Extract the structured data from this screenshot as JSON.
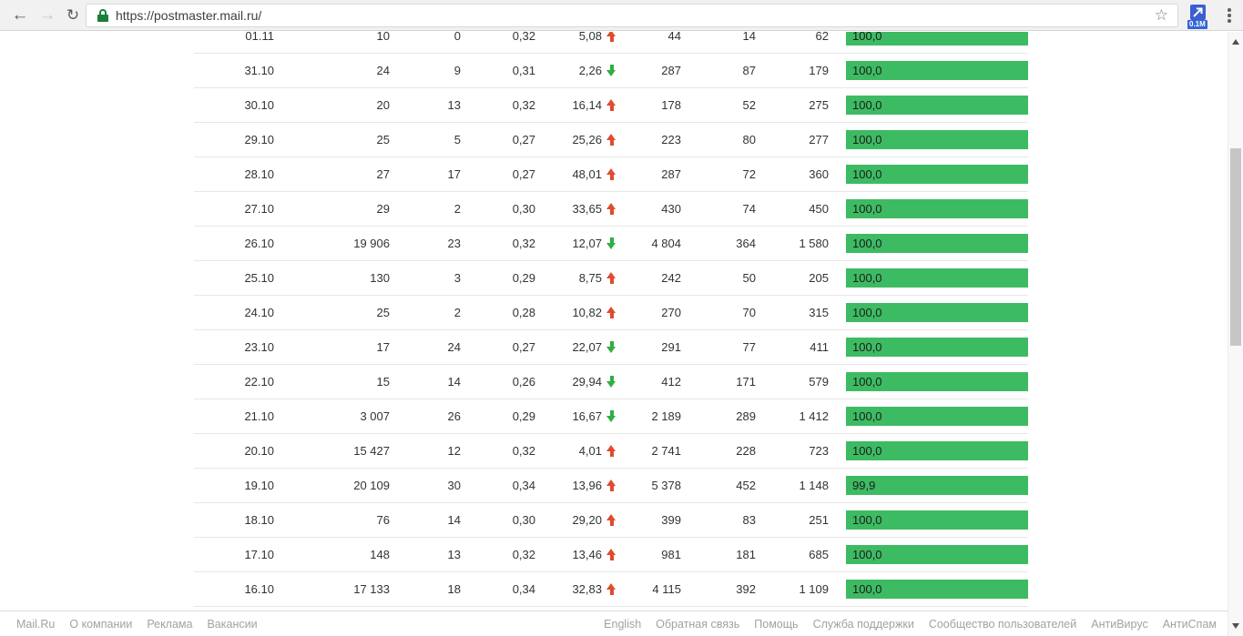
{
  "browser": {
    "url": "https://postmaster.mail.ru/",
    "extension_badge": "0.1M"
  },
  "table": {
    "rows": [
      {
        "date": "01.11",
        "v1": "10",
        "v2": "0",
        "v3": "0,32",
        "delta": "5,08",
        "delta_dir": "up",
        "v4": "44",
        "v5": "14",
        "v6": "62",
        "bar_label": "100,0",
        "bar_value": 100.0
      },
      {
        "date": "31.10",
        "v1": "24",
        "v2": "9",
        "v3": "0,31",
        "delta": "2,26",
        "delta_dir": "down",
        "v4": "287",
        "v5": "87",
        "v6": "179",
        "bar_label": "100,0",
        "bar_value": 100.0
      },
      {
        "date": "30.10",
        "v1": "20",
        "v2": "13",
        "v3": "0,32",
        "delta": "16,14",
        "delta_dir": "up",
        "v4": "178",
        "v5": "52",
        "v6": "275",
        "bar_label": "100,0",
        "bar_value": 100.0
      },
      {
        "date": "29.10",
        "v1": "25",
        "v2": "5",
        "v3": "0,27",
        "delta": "25,26",
        "delta_dir": "up",
        "v4": "223",
        "v5": "80",
        "v6": "277",
        "bar_label": "100,0",
        "bar_value": 100.0
      },
      {
        "date": "28.10",
        "v1": "27",
        "v2": "17",
        "v3": "0,27",
        "delta": "48,01",
        "delta_dir": "up",
        "v4": "287",
        "v5": "72",
        "v6": "360",
        "bar_label": "100,0",
        "bar_value": 100.0
      },
      {
        "date": "27.10",
        "v1": "29",
        "v2": "2",
        "v3": "0,30",
        "delta": "33,65",
        "delta_dir": "up",
        "v4": "430",
        "v5": "74",
        "v6": "450",
        "bar_label": "100,0",
        "bar_value": 100.0
      },
      {
        "date": "26.10",
        "v1": "19 906",
        "v2": "23",
        "v3": "0,32",
        "delta": "12,07",
        "delta_dir": "down",
        "v4": "4 804",
        "v5": "364",
        "v6": "1 580",
        "bar_label": "100,0",
        "bar_value": 100.0
      },
      {
        "date": "25.10",
        "v1": "130",
        "v2": "3",
        "v3": "0,29",
        "delta": "8,75",
        "delta_dir": "up",
        "v4": "242",
        "v5": "50",
        "v6": "205",
        "bar_label": "100,0",
        "bar_value": 100.0
      },
      {
        "date": "24.10",
        "v1": "25",
        "v2": "2",
        "v3": "0,28",
        "delta": "10,82",
        "delta_dir": "up",
        "v4": "270",
        "v5": "70",
        "v6": "315",
        "bar_label": "100,0",
        "bar_value": 100.0
      },
      {
        "date": "23.10",
        "v1": "17",
        "v2": "24",
        "v3": "0,27",
        "delta": "22,07",
        "delta_dir": "down",
        "v4": "291",
        "v5": "77",
        "v6": "411",
        "bar_label": "100,0",
        "bar_value": 100.0
      },
      {
        "date": "22.10",
        "v1": "15",
        "v2": "14",
        "v3": "0,26",
        "delta": "29,94",
        "delta_dir": "down",
        "v4": "412",
        "v5": "171",
        "v6": "579",
        "bar_label": "100,0",
        "bar_value": 100.0
      },
      {
        "date": "21.10",
        "v1": "3 007",
        "v2": "26",
        "v3": "0,29",
        "delta": "16,67",
        "delta_dir": "down",
        "v4": "2 189",
        "v5": "289",
        "v6": "1 412",
        "bar_label": "100,0",
        "bar_value": 100.0
      },
      {
        "date": "20.10",
        "v1": "15 427",
        "v2": "12",
        "v3": "0,32",
        "delta": "4,01",
        "delta_dir": "up",
        "v4": "2 741",
        "v5": "228",
        "v6": "723",
        "bar_label": "100,0",
        "bar_value": 100.0
      },
      {
        "date": "19.10",
        "v1": "20 109",
        "v2": "30",
        "v3": "0,34",
        "delta": "13,96",
        "delta_dir": "up",
        "v4": "5 378",
        "v5": "452",
        "v6": "1 148",
        "bar_label": "99,9",
        "bar_value": 99.9
      },
      {
        "date": "18.10",
        "v1": "76",
        "v2": "14",
        "v3": "0,30",
        "delta": "29,20",
        "delta_dir": "up",
        "v4": "399",
        "v5": "83",
        "v6": "251",
        "bar_label": "100,0",
        "bar_value": 100.0
      },
      {
        "date": "17.10",
        "v1": "148",
        "v2": "13",
        "v3": "0,32",
        "delta": "13,46",
        "delta_dir": "up",
        "v4": "981",
        "v5": "181",
        "v6": "685",
        "bar_label": "100,0",
        "bar_value": 100.0
      },
      {
        "date": "16.10",
        "v1": "17 133",
        "v2": "18",
        "v3": "0,34",
        "delta": "32,83",
        "delta_dir": "up",
        "v4": "4 115",
        "v5": "392",
        "v6": "1 109",
        "bar_label": "100,0",
        "bar_value": 100.0
      }
    ]
  },
  "footer": {
    "left_links": [
      "Mail.Ru",
      "О компании",
      "Реклама",
      "Вакансии"
    ],
    "right_links": [
      "English",
      "Обратная связь",
      "Помощь",
      "Служба поддержки",
      "Сообщество пользователей",
      "АнтиВирус",
      "АнтиСпам"
    ]
  },
  "colors": {
    "bar_green": "#3dbb63",
    "arrow_up": "#e04b2e",
    "arrow_down": "#2fae43",
    "lock_green": "#188038",
    "badge_blue": "#3367d6"
  }
}
